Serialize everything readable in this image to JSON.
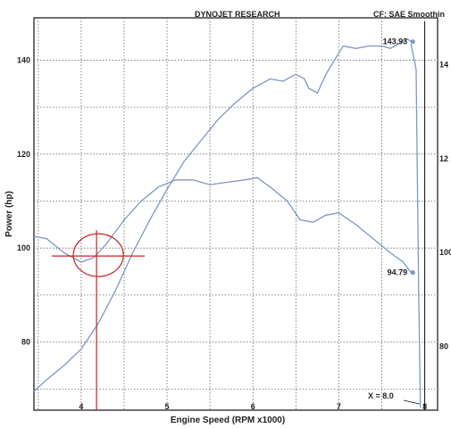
{
  "header": {
    "title": "DYNOJET RESEARCH",
    "correction": "CF: SAE  Smoothin"
  },
  "chart_data": {
    "type": "line",
    "title": "DYNOJET RESEARCH",
    "xlabel": "Engine Speed (RPM x1000)",
    "ylabel": "Power (hp)",
    "xlim": [
      3.45,
      8.15
    ],
    "ylim": [
      65.5,
      149
    ],
    "x_ticks": [
      "4",
      "5",
      "6",
      "7",
      "8"
    ],
    "y_ticks": [
      "80",
      "100",
      "120",
      "140"
    ],
    "y_ticks_right": [
      "80",
      "100",
      "12",
      "14"
    ],
    "grid": true,
    "series": [
      {
        "color": "#7f96c4",
        "points": [
          [
            3.45,
            69.5
          ],
          [
            3.6,
            72
          ],
          [
            3.8,
            75
          ],
          [
            4.0,
            78.5
          ],
          [
            4.2,
            84
          ],
          [
            4.4,
            91
          ],
          [
            4.6,
            99
          ],
          [
            4.8,
            106
          ],
          [
            5.0,
            112.5
          ],
          [
            5.2,
            118.5
          ],
          [
            5.4,
            123
          ],
          [
            5.6,
            127.5
          ],
          [
            5.8,
            131
          ],
          [
            6.0,
            134
          ],
          [
            6.2,
            136
          ],
          [
            6.35,
            135.5
          ],
          [
            6.5,
            137
          ],
          [
            6.6,
            136
          ],
          [
            6.65,
            134
          ],
          [
            6.75,
            133
          ],
          [
            6.85,
            137
          ],
          [
            6.95,
            140
          ],
          [
            7.05,
            143
          ],
          [
            7.2,
            142.5
          ],
          [
            7.35,
            143
          ],
          [
            7.5,
            143
          ],
          [
            7.6,
            142.5
          ],
          [
            7.7,
            143.5
          ],
          [
            7.8,
            144.5
          ],
          [
            7.84,
            143.93
          ]
        ]
      },
      {
        "color": "#7f96c4",
        "points": [
          [
            3.45,
            102.5
          ],
          [
            3.6,
            102
          ],
          [
            3.8,
            99
          ],
          [
            4.0,
            97
          ],
          [
            4.15,
            98
          ],
          [
            4.3,
            101
          ],
          [
            4.5,
            106
          ],
          [
            4.7,
            110
          ],
          [
            4.9,
            113
          ],
          [
            5.1,
            114.5
          ],
          [
            5.3,
            114.5
          ],
          [
            5.5,
            113.5
          ],
          [
            5.7,
            114
          ],
          [
            5.9,
            114.5
          ],
          [
            6.05,
            115
          ],
          [
            6.2,
            113
          ],
          [
            6.4,
            110
          ],
          [
            6.55,
            106
          ],
          [
            6.7,
            105.5
          ],
          [
            6.85,
            107
          ],
          [
            7.0,
            107.5
          ],
          [
            7.2,
            105
          ],
          [
            7.4,
            102
          ],
          [
            7.6,
            99
          ],
          [
            7.75,
            97
          ],
          [
            7.84,
            94.79
          ]
        ]
      }
    ],
    "annotations": {
      "peak_labels": [
        "143.93",
        "94.79"
      ],
      "peak_values": [
        {
          "x": 7.84,
          "y": 143.93
        },
        {
          "x": 7.84,
          "y": 94.79
        }
      ],
      "x_note": "X = 8.0",
      "marker": {
        "x": 4.2,
        "y": 98.5,
        "color": "#cc2222"
      }
    }
  }
}
